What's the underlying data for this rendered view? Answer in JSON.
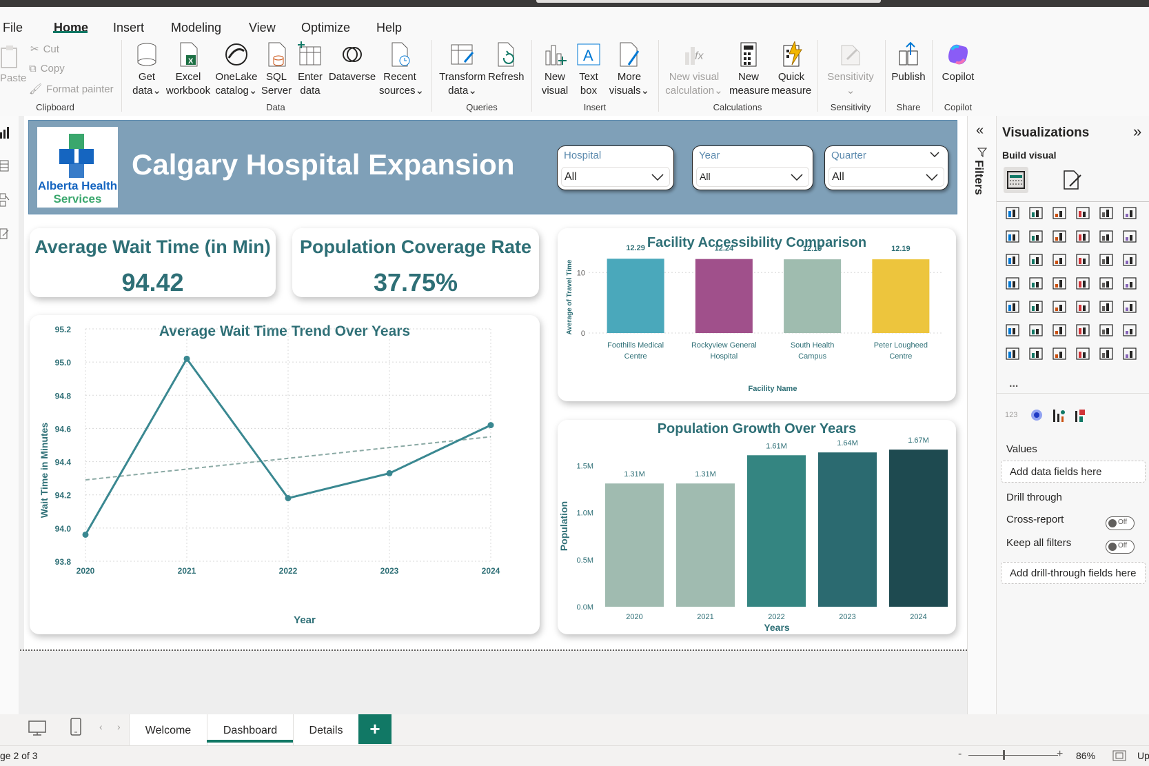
{
  "menu": {
    "file": "File",
    "home": "Home",
    "insert": "Insert",
    "modeling": "Modeling",
    "view": "View",
    "optimize": "Optimize",
    "help": "Help"
  },
  "ribbon": {
    "clipboard": {
      "paste": "Paste",
      "cut": "Cut",
      "copy": "Copy",
      "format_painter": "Format painter",
      "group": "Clipboard"
    },
    "data": {
      "get_data": [
        "Get",
        "data"
      ],
      "excel": [
        "Excel",
        "workbook"
      ],
      "onelake": [
        "OneLake",
        "catalog"
      ],
      "sql": [
        "SQL",
        "Server"
      ],
      "enter": [
        "Enter",
        "data"
      ],
      "dataverse": "Dataverse",
      "recent": [
        "Recent",
        "sources"
      ],
      "group": "Data"
    },
    "queries": {
      "transform": [
        "Transform",
        "data"
      ],
      "refresh": "Refresh",
      "group": "Queries"
    },
    "insert": {
      "new_visual": [
        "New",
        "visual"
      ],
      "text_box": [
        "Text",
        "box"
      ],
      "more_visuals": [
        "More",
        "visuals"
      ],
      "group": "Insert"
    },
    "calculations": {
      "new_visual_calc": [
        "New visual",
        "calculation"
      ],
      "new_measure": [
        "New",
        "measure"
      ],
      "quick_measure": [
        "Quick",
        "measure"
      ],
      "group": "Calculations"
    },
    "sensitivity": {
      "label": "Sensitivity",
      "group": "Sensitivity"
    },
    "share": {
      "publish": "Publish",
      "group": "Share"
    },
    "copilot": {
      "label": "Copilot",
      "group": "Copilot"
    }
  },
  "dashboard": {
    "logo_line1": "Alberta Health",
    "logo_line2": "Services",
    "title": "Calgary Hospital Expansion",
    "slicers": [
      {
        "label": "Hospital",
        "value": "All"
      },
      {
        "label": "Year",
        "value": "All"
      },
      {
        "label": "Quarter",
        "value": "All"
      }
    ],
    "kpis": [
      {
        "title": "Average Wait Time (in Min)",
        "value": "94.42"
      },
      {
        "title": "Population Coverage Rate",
        "value": "37.75%"
      }
    ]
  },
  "chart_data": [
    {
      "type": "line",
      "title": "Average Wait Time Trend Over Years",
      "xlabel": "Year",
      "ylabel": "Wait Time in Minutes",
      "x": [
        2020,
        2021,
        2022,
        2023,
        2024
      ],
      "series": [
        {
          "values": [
            93.96,
            95.02,
            94.18,
            94.33,
            94.62
          ]
        }
      ],
      "trendline": [
        94.29,
        94.55
      ],
      "ylim": [
        93.8,
        95.2
      ],
      "yticks": [
        93.8,
        94.0,
        94.2,
        94.4,
        94.6,
        94.8,
        95.0,
        95.2
      ],
      "color": "#3a8891",
      "grid": true
    },
    {
      "type": "bar",
      "title": "Facility Accessibility Comparison",
      "xlabel": "Facility Name",
      "ylabel": "Average of Travel Time",
      "categories": [
        "Foothills Medical Centre",
        "Rockyview General Hospital",
        "South Health Campus",
        "Peter Lougheed Centre"
      ],
      "category_lines": [
        [
          "Foothills Medical",
          "Centre"
        ],
        [
          "Rockyview General",
          "Hospital"
        ],
        [
          "South Health",
          "Campus"
        ],
        [
          "Peter Lougheed",
          "Centre"
        ]
      ],
      "values": [
        12.29,
        12.24,
        12.19,
        12.19
      ],
      "colors": [
        "#4aa8bb",
        "#a0508b",
        "#9fbcaf",
        "#edc53d"
      ],
      "ylim": [
        0,
        13
      ],
      "yticks": [
        0,
        10
      ],
      "grid": true
    },
    {
      "type": "bar",
      "title": "Population Growth Over Years",
      "xlabel": "Years",
      "ylabel": "Population",
      "categories": [
        "2020",
        "2021",
        "2022",
        "2023",
        "2024"
      ],
      "values": [
        1310000,
        1310000,
        1610000,
        1640000,
        1670000
      ],
      "value_labels": [
        "1.31M",
        "1.31M",
        "1.61M",
        "1.64M",
        "1.67M"
      ],
      "colors": [
        "#a0bbb0",
        "#a0bbb0",
        "#348581",
        "#2b6a70",
        "#1e4a50"
      ],
      "ylim": [
        0,
        1700000
      ],
      "yticks": [
        0,
        500000,
        1000000,
        1500000
      ],
      "ytick_labels": [
        "0.0M",
        "0.5M",
        "1.0M",
        "1.5M"
      ]
    }
  ],
  "filters_pane": {
    "label": "Filters"
  },
  "viz_pane": {
    "title": "Visualizations",
    "build_visual": "Build visual",
    "values_label": "Values",
    "values_placeholder": "Add data fields here",
    "drill_through": "Drill through",
    "cross_report": "Cross-report",
    "keep_all_filters": "Keep all filters",
    "toggle_off": "Off",
    "drill_placeholder": "Add drill-through fields here",
    "more": "..."
  },
  "tabs": [
    {
      "label": "Welcome"
    },
    {
      "label": "Dashboard",
      "active": true
    },
    {
      "label": "Details"
    }
  ],
  "add_tab": "+",
  "status": {
    "page": "ge 2 of 3",
    "zoom": "86%",
    "zoom_minus": "-",
    "zoom_plus": "+",
    "update": "Up"
  }
}
